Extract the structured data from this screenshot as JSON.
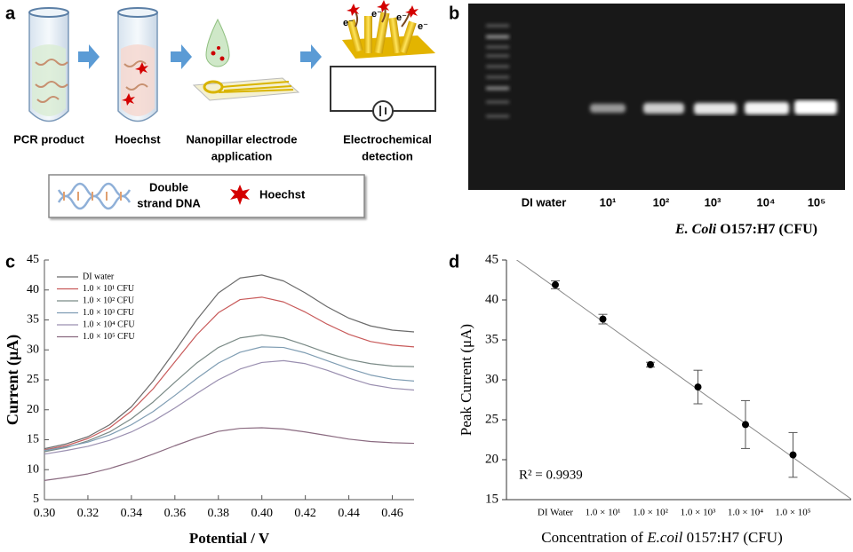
{
  "panel_labels": [
    "a",
    "b",
    "c",
    "d"
  ],
  "panel_a": {
    "steps": [
      [
        "PCR product"
      ],
      [
        "Hoechst"
      ],
      [
        "Nanopillar electrode",
        "application"
      ],
      [
        "Electrochemical",
        "detection"
      ]
    ],
    "legend": [
      [
        "Double",
        "strand DNA"
      ],
      [
        "Hoechst"
      ]
    ],
    "electron_label": "e⁻"
  },
  "panel_b": {
    "lanes": [
      "DI water",
      "10¹",
      "10²",
      "10³",
      "10⁴",
      "10⁵"
    ],
    "caption": [
      "E. Coli",
      " O157:H7 (CFU)"
    ]
  },
  "chart_data": [
    {
      "type": "line",
      "y_label": "Current (μA)",
      "x_label": "Potential / V",
      "x": [
        0.3,
        0.31,
        0.32,
        0.33,
        0.34,
        0.35,
        0.36,
        0.37,
        0.38,
        0.39,
        0.4,
        0.41,
        0.42,
        0.43,
        0.44,
        0.45,
        0.46,
        0.47
      ],
      "xlim": [
        0.3,
        0.47
      ],
      "xticks": [
        {
          "value": 0.3,
          "label": "0.30"
        },
        0.32,
        0.34,
        0.36,
        0.38,
        {
          "value": 0.4,
          "label": "0.40"
        },
        0.42,
        0.44,
        0.46
      ],
      "ylim": [
        5,
        45
      ],
      "yticks": [
        5,
        10,
        15,
        20,
        25,
        30,
        35,
        40,
        45
      ],
      "series": [
        {
          "name": "DI water",
          "color": "#6b6b6b",
          "values": [
            13.5,
            14.3,
            15.5,
            17.5,
            20.5,
            24.8,
            29.8,
            35,
            39.5,
            42,
            42.5,
            41.5,
            39.5,
            37.2,
            35.3,
            34,
            33.3,
            33
          ]
        },
        {
          "name": "1.0 × 10¹ CFU",
          "color": "#c85a5a",
          "values": [
            13.3,
            14,
            15.2,
            17,
            19.8,
            23.5,
            28,
            32.5,
            36.2,
            38.4,
            38.8,
            38,
            36.3,
            34.3,
            32.6,
            31.4,
            30.8,
            30.5
          ]
        },
        {
          "name": "1.0 × 10² CFU",
          "color": "#7a8a86",
          "values": [
            13,
            13.7,
            14.8,
            16.3,
            18.5,
            21.3,
            24.6,
            27.8,
            30.4,
            32,
            32.5,
            32,
            30.8,
            29.5,
            28.4,
            27.7,
            27.3,
            27.2
          ]
        },
        {
          "name": "1.0 × 10³ CFU",
          "color": "#7f9db3",
          "values": [
            13.2,
            13.8,
            14.6,
            15.8,
            17.5,
            19.7,
            22.4,
            25.2,
            27.8,
            29.6,
            30.5,
            30.4,
            29.5,
            28.2,
            26.9,
            25.8,
            25.1,
            24.8
          ]
        },
        {
          "name": "1.0 × 10⁴ CFU",
          "color": "#9a8fb0",
          "values": [
            12.6,
            13.2,
            13.9,
            14.9,
            16.3,
            18.1,
            20.3,
            22.7,
            25,
            26.8,
            27.9,
            28.2,
            27.7,
            26.6,
            25.3,
            24.2,
            23.6,
            23.3
          ]
        },
        {
          "name": "1.0 × 10⁵ CFU",
          "color": "#8a6a80",
          "values": [
            8.2,
            8.7,
            9.3,
            10.2,
            11.3,
            12.6,
            14,
            15.3,
            16.4,
            16.9,
            17,
            16.8,
            16.3,
            15.7,
            15.1,
            14.7,
            14.5,
            14.4
          ]
        }
      ]
    },
    {
      "type": "scatter",
      "y_label": "Peak Current (μA)",
      "x_label": [
        "Concentration of ",
        "E.coil",
        " 0157:H7 (CFU)"
      ],
      "annotation": "R² = 0.9939",
      "categories": [
        "DI Water",
        "1.0 × 10¹",
        "1.0 × 10²",
        "1.0 × 10³",
        "1.0 × 10⁴",
        "1.0 × 10⁵"
      ],
      "values": [
        41.9,
        37.6,
        31.9,
        29.1,
        24.4,
        20.6
      ],
      "errors": [
        0.5,
        0.6,
        0.3,
        2.1,
        3.0,
        2.8
      ],
      "color": "#000000",
      "trendline": true,
      "ylim": [
        15,
        45
      ],
      "yticks": [
        15,
        20,
        25,
        30,
        35,
        40,
        45
      ]
    }
  ]
}
